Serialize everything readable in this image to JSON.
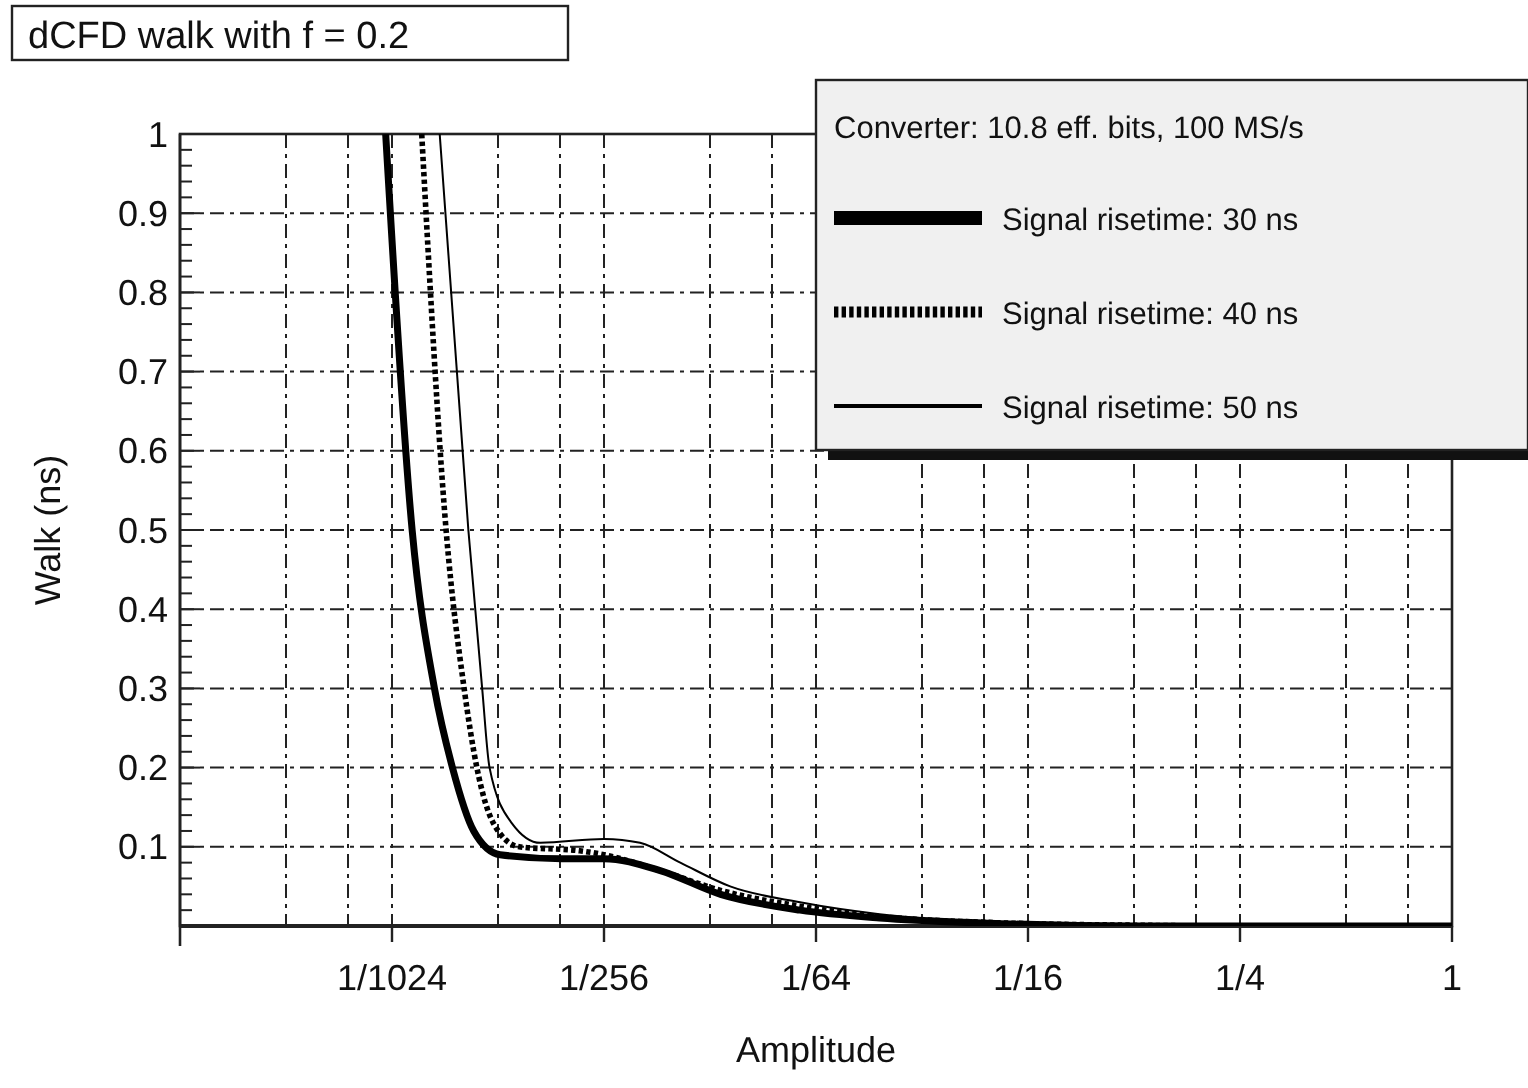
{
  "chart_data": {
    "type": "line",
    "title": "dCFD walk with f = 0.2",
    "xlabel": "Amplitude",
    "ylabel": "Walk (ns)",
    "legend_title": "Converter: 10.8 eff. bits, 100 MS/s",
    "log": "x",
    "grid": true,
    "legend": "top right",
    "marker": "none",
    "xlim": [
      0.000244140625,
      1
    ],
    "ylim": [
      0,
      1
    ],
    "xticks": [
      {
        "value": 0.00048828125,
        "label": null
      },
      {
        "value": 0.000732421875,
        "label": null
      },
      {
        "value": 0.0009765625,
        "label": "1/1024"
      },
      {
        "value": 0.001953125,
        "label": null
      },
      {
        "value": 0.0029296875,
        "label": null
      },
      {
        "value": 0.00390625,
        "label": "1/256"
      },
      {
        "value": 0.0078125,
        "label": null
      },
      {
        "value": 0.01171875,
        "label": null
      },
      {
        "value": 0.015625,
        "label": "1/64"
      },
      {
        "value": 0.03125,
        "label": null
      },
      {
        "value": 0.046875,
        "label": null
      },
      {
        "value": 0.0625,
        "label": "1/16"
      },
      {
        "value": 0.125,
        "label": null
      },
      {
        "value": 0.1875,
        "label": null
      },
      {
        "value": 0.25,
        "label": "1/4"
      },
      {
        "value": 0.5,
        "label": null
      },
      {
        "value": 0.75,
        "label": null
      },
      1
    ],
    "yticks": [
      {
        "value": 0.02,
        "label": null
      },
      {
        "value": 0.04,
        "label": null
      },
      {
        "value": 0.06,
        "label": null
      },
      {
        "value": 0.08,
        "label": null
      },
      0.1,
      {
        "value": 0.12,
        "label": null
      },
      {
        "value": 0.14,
        "label": null
      },
      {
        "value": 0.16,
        "label": null
      },
      {
        "value": 0.18,
        "label": null
      },
      0.2,
      {
        "value": 0.22,
        "label": null
      },
      {
        "value": 0.24,
        "label": null
      },
      {
        "value": 0.26,
        "label": null
      },
      {
        "value": 0.28,
        "label": null
      },
      0.3,
      {
        "value": 0.32,
        "label": null
      },
      {
        "value": 0.34,
        "label": null
      },
      {
        "value": 0.36,
        "label": null
      },
      {
        "value": 0.38,
        "label": null
      },
      0.4,
      {
        "value": 0.42,
        "label": null
      },
      {
        "value": 0.44,
        "label": null
      },
      {
        "value": 0.46,
        "label": null
      },
      {
        "value": 0.48,
        "label": null
      },
      0.5,
      {
        "value": 0.52,
        "label": null
      },
      {
        "value": 0.54,
        "label": null
      },
      {
        "value": 0.56,
        "label": null
      },
      {
        "value": 0.58,
        "label": null
      },
      0.6,
      {
        "value": 0.62,
        "label": null
      },
      {
        "value": 0.64,
        "label": null
      },
      {
        "value": 0.66,
        "label": null
      },
      {
        "value": 0.68,
        "label": null
      },
      0.7,
      {
        "value": 0.72,
        "label": null
      },
      {
        "value": 0.74,
        "label": null
      },
      {
        "value": 0.76,
        "label": null
      },
      {
        "value": 0.78,
        "label": null
      },
      0.8,
      {
        "value": 0.82,
        "label": null
      },
      {
        "value": 0.84,
        "label": null
      },
      {
        "value": 0.86,
        "label": null
      },
      {
        "value": 0.88,
        "label": null
      },
      0.9,
      {
        "value": 0.92,
        "label": null
      },
      {
        "value": 0.94,
        "label": null
      },
      {
        "value": 0.96,
        "label": null
      },
      {
        "value": 0.98,
        "label": null
      },
      1
    ],
    "series": [
      {
        "name": "Signal risetime: 30 ns",
        "color": "#000000",
        "line_style": "solid",
        "x": [
          0.000937,
          0.001114,
          0.001289,
          0.00145,
          0.001666,
          0.001981,
          0.00296,
          0.003906,
          0.00564,
          0.008373,
          0.01408,
          0.02368,
          0.05219,
          0.125,
          0.25,
          1
        ],
        "values": [
          1,
          0.5,
          0.3,
          0.2,
          0.12,
          0.09,
          0.085,
          0.085,
          0.07,
          0.04,
          0.02,
          0.01,
          0.003,
          0,
          0,
          0
        ]
      },
      {
        "name": "Signal risetime: 40 ns",
        "color": "#000000",
        "line_style": "dotted",
        "x": [
          0.001186,
          0.001391,
          0.001565,
          0.001701,
          0.001894,
          0.002244,
          0.003332,
          0.003906,
          0.00564,
          0.008373,
          0.01408,
          0.02368,
          0.05219,
          0.125,
          0.25,
          1
        ],
        "values": [
          1,
          0.5,
          0.3,
          0.2,
          0.13,
          0.1,
          0.095,
          0.09,
          0.07,
          0.045,
          0.025,
          0.012,
          0.004,
          0.001,
          0,
          0
        ]
      },
      {
        "name": "Signal risetime: 50 ns",
        "color": "#000000",
        "line_style": "solid",
        "x": [
          0.001334,
          0.001609,
          0.001761,
          0.001848,
          0.002137,
          0.002578,
          0.003906,
          0.004945,
          0.006434,
          0.008914,
          0.01408,
          0.02368,
          0.05219,
          0.125,
          0.25,
          1
        ],
        "values": [
          1,
          0.5,
          0.3,
          0.2,
          0.13,
          0.105,
          0.11,
          0.105,
          0.08,
          0.05,
          0.03,
          0.015,
          0.005,
          0.001,
          0,
          0
        ]
      }
    ]
  }
}
